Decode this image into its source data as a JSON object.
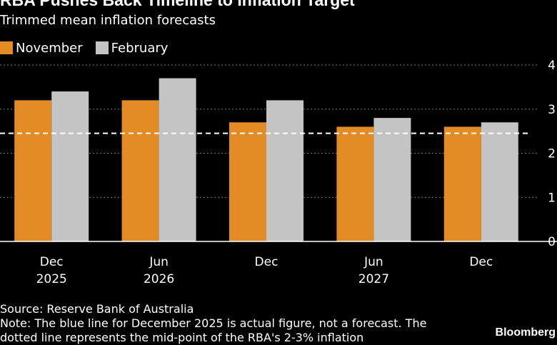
{
  "header": {
    "title": "RBA Pushes Back Timeline to Inflation Target",
    "subtitle": "Trimmed mean inflation forecasts"
  },
  "legend": {
    "items": [
      {
        "label": "November",
        "color": "#E38B25"
      },
      {
        "label": "February",
        "color": "#C4C4C4"
      }
    ]
  },
  "footer": {
    "source": "Source: Reserve Bank of Australia",
    "note_line1": "Note: The blue line for December 2025 is actual figure, not a forecast. The",
    "note_line2": "dotted line represents the mid-point of the RBA's 2-3% inflation",
    "brand": "Bloomberg"
  },
  "chart_data": {
    "type": "bar",
    "categories": [
      {
        "line1": "Dec",
        "line2": "2025"
      },
      {
        "line1": "Jun",
        "line2": "2026"
      },
      {
        "line1": "Dec",
        "line2": ""
      },
      {
        "line1": "Jun",
        "line2": "2027"
      },
      {
        "line1": "Dec",
        "line2": ""
      }
    ],
    "series": [
      {
        "name": "November",
        "color": "#E38B25",
        "values": [
          3.2,
          3.2,
          2.7,
          2.6,
          2.6
        ]
      },
      {
        "name": "February",
        "color": "#C4C4C4",
        "values": [
          3.4,
          3.7,
          3.2,
          2.8,
          2.7
        ]
      }
    ],
    "ylim": [
      0,
      4
    ],
    "yticks": [
      "0",
      "1",
      "2",
      "3",
      "4"
    ],
    "reference_line": {
      "value": 2.5,
      "style": "dashed",
      "color": "#FFFFFF"
    },
    "grid": true,
    "grid_style": "dotted",
    "y_axis_position": "right",
    "legend_position": "top-left"
  }
}
